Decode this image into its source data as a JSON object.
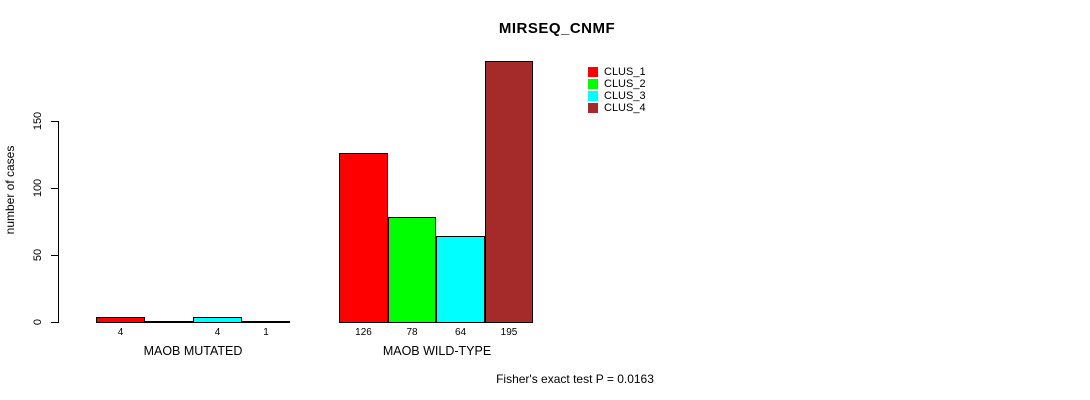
{
  "chart_data": {
    "type": "bar",
    "title": "MIRSEQ_CNMF",
    "ylabel": "number of cases",
    "xlabel": "",
    "footnote": "Fisher's exact test P = 0.0163",
    "categories": [
      "MAOB MUTATED",
      "MAOB WILD-TYPE"
    ],
    "series": [
      {
        "name": "CLUS_1",
        "color": "#FF0000",
        "values": [
          4,
          126
        ]
      },
      {
        "name": "CLUS_2",
        "color": "#00FF00",
        "values": [
          0,
          78
        ]
      },
      {
        "name": "CLUS_3",
        "color": "#00FFFF",
        "values": [
          4,
          64
        ]
      },
      {
        "name": "CLUS_4",
        "color": "#A52A2A",
        "values": [
          1,
          195
        ]
      }
    ],
    "bar_labels": [
      [
        "4",
        "",
        "4",
        "1"
      ],
      [
        "126",
        "78",
        "64",
        "195"
      ]
    ],
    "yticks": [
      0,
      50,
      100,
      150
    ],
    "ylim": [
      0,
      195
    ],
    "legend_position": "top-right",
    "grid": false,
    "background": "#ffffff"
  }
}
